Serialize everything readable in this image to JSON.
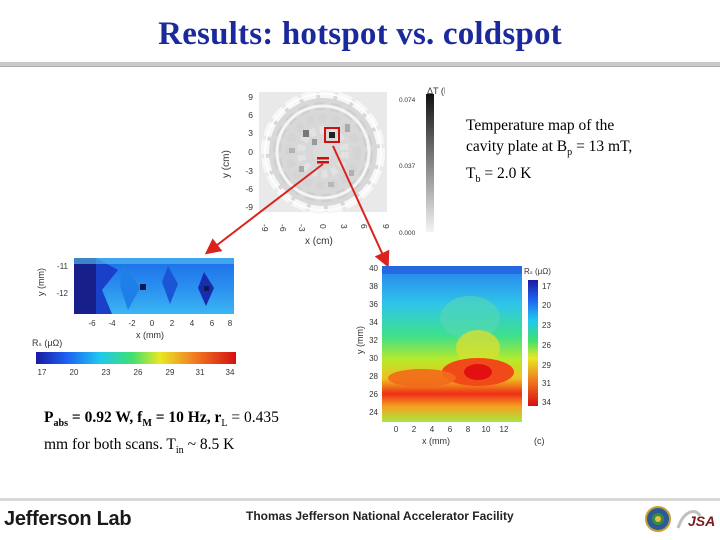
{
  "slide": {
    "title": "Results: hotspot vs. coldspot"
  },
  "captions": {
    "right_line1": "Temperature map of the",
    "right_line2a": "cavity plate at B",
    "right_line2_sub": "p",
    "right_line2b": " = 13 mT,",
    "right_line3a": "T",
    "right_line3_sub": "b",
    "right_line3b": " = 2.0 K",
    "left_p": "P",
    "left_p_sub": "abs",
    "left_p_val": " = 0.92 W, f",
    "left_f_sub": "M",
    "left_f_val": " = 10 Hz, r",
    "left_r_sub": "L",
    "left_r_val": " = 0.435",
    "left_line2a": "mm for both scans. T",
    "left_line2_sub": "in",
    "left_line2b": " ~ 8.5 K"
  },
  "temperature_map": {
    "colorbar_label": "ΔT (K)",
    "colorbar_ticks": [
      "0.074",
      "0.037",
      "0.000"
    ],
    "y_axis_label": "y (cm)",
    "x_axis_label": "x (cm)",
    "y_ticks": [
      "9",
      "6",
      "3",
      "0",
      "-3",
      "-6",
      "-9"
    ],
    "x_ticks": [
      "-9",
      "-6",
      "-3",
      "0",
      "3",
      "6",
      "9"
    ]
  },
  "left_scan": {
    "y_axis_label": "y (mm)",
    "x_axis_label": "x (mm)",
    "y_ticks": [
      "-11",
      "-12"
    ],
    "x_ticks": [
      "-6",
      "-4",
      "-2",
      "0",
      "2",
      "4",
      "6",
      "8"
    ],
    "colorbar_label": "Rₛ (μΩ)",
    "colorbar_ticks": [
      "17",
      "20",
      "23",
      "26",
      "29",
      "31",
      "34"
    ]
  },
  "right_scan": {
    "y_axis_label": "y (mm)",
    "x_axis_label": "x (mm)",
    "y_ticks": [
      "40",
      "38",
      "36",
      "34",
      "32",
      "30",
      "28",
      "26",
      "24"
    ],
    "x_ticks": [
      "0",
      "2",
      "4",
      "6",
      "8",
      "10",
      "12"
    ],
    "colorbar_label": "Rₛ (μΩ)",
    "colorbar_ticks": [
      "17",
      "20",
      "23",
      "26",
      "29",
      "31",
      "34"
    ],
    "panel_label": "(c)"
  },
  "footer": {
    "logo_text": "Jefferson Lab",
    "facility": "Thomas Jefferson National Accelerator Facility",
    "jsa_text": "JSA"
  },
  "colors": {
    "title": "#1a2a9c",
    "arrow": "#d9231f",
    "hotspot_box": "#cc1111"
  }
}
